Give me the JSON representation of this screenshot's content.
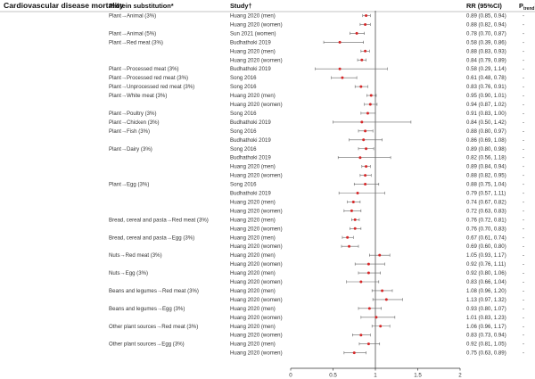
{
  "header": {
    "outcome": "Cardiovascular disease mortality",
    "substitution": "Protein substitution*",
    "study": "Study†",
    "rr": "RR (95%CI)",
    "p": "P",
    "p_sub": "trend",
    "p_sup": "‡"
  },
  "chart_data": {
    "type": "forest",
    "x_ticks": [
      0,
      0.5,
      1,
      1.5,
      2
    ],
    "x_tick_labels": [
      "0",
      "0.5",
      "1",
      "1.5",
      "2"
    ],
    "xlim": [
      0,
      2
    ],
    "reference_line": 1,
    "marker_color": "#d62728",
    "rows": [
      {
        "substitution": "Plant→Animal (3%)",
        "study": "Huang 2020 (men)",
        "rr": 0.89,
        "lo": 0.85,
        "hi": 0.94,
        "text": "0.89 (0.85, 0.94)",
        "p": "-"
      },
      {
        "substitution": "",
        "study": "Huang 2020 (women)",
        "rr": 0.88,
        "lo": 0.82,
        "hi": 0.94,
        "text": "0.88 (0.82, 0.94)",
        "p": "-"
      },
      {
        "substitution": "Plant→Animal (5%)",
        "study": "Sun 2021 (women)",
        "rr": 0.78,
        "lo": 0.7,
        "hi": 0.87,
        "text": "0.78 (0.70, 0.87)",
        "p": "-"
      },
      {
        "substitution": "Plant→Red meat (3%)",
        "study": "Budhathoki 2019",
        "rr": 0.58,
        "lo": 0.39,
        "hi": 0.86,
        "text": "0.58 (0.39, 0.86)",
        "p": "-"
      },
      {
        "substitution": "",
        "study": "Huang 2020 (men)",
        "rr": 0.88,
        "lo": 0.83,
        "hi": 0.93,
        "text": "0.88 (0.83, 0.93)",
        "p": "-"
      },
      {
        "substitution": "",
        "study": "Huang 2020 (women)",
        "rr": 0.84,
        "lo": 0.79,
        "hi": 0.89,
        "text": "0.84 (0.79, 0.89)",
        "p": "-"
      },
      {
        "substitution": "Plant→Processed meat (3%)",
        "study": "Budhathoki 2019",
        "rr": 0.58,
        "lo": 0.29,
        "hi": 1.14,
        "text": "0.58 (0.29, 1.14)",
        "p": "-"
      },
      {
        "substitution": "Plant→Processed red meat (3%)",
        "study": "Song 2016",
        "rr": 0.61,
        "lo": 0.48,
        "hi": 0.78,
        "text": "0.61 (0.48, 0.78)",
        "p": "-"
      },
      {
        "substitution": "Plant→Unprocessed red meat (3%)",
        "study": "Song 2016",
        "rr": 0.83,
        "lo": 0.76,
        "hi": 0.91,
        "text": "0.83 (0.76, 0.91)",
        "p": "-"
      },
      {
        "substitution": "Plant→White meat (3%)",
        "study": "Huang 2020 (men)",
        "rr": 0.95,
        "lo": 0.9,
        "hi": 1.01,
        "text": "0.95 (0.90, 1.01)",
        "p": "-"
      },
      {
        "substitution": "",
        "study": "Huang 2020 (women)",
        "rr": 0.94,
        "lo": 0.87,
        "hi": 1.02,
        "text": "0.94 (0.87, 1.02)",
        "p": "-"
      },
      {
        "substitution": "Plant→Poultry (3%)",
        "study": "Song 2016",
        "rr": 0.91,
        "lo": 0.83,
        "hi": 1.0,
        "text": "0.91 (0.83, 1.00)",
        "p": "-"
      },
      {
        "substitution": "Plant→Chicken (3%)",
        "study": "Budhathoki 2019",
        "rr": 0.84,
        "lo": 0.5,
        "hi": 1.42,
        "text": "0.84 (0.50, 1.42)",
        "p": "-"
      },
      {
        "substitution": "Plant→Fish (3%)",
        "study": "Song 2016",
        "rr": 0.88,
        "lo": 0.8,
        "hi": 0.97,
        "text": "0.88 (0.80, 0.97)",
        "p": "-"
      },
      {
        "substitution": "",
        "study": "Budhathoki 2019",
        "rr": 0.86,
        "lo": 0.69,
        "hi": 1.08,
        "text": "0.86 (0.69, 1.08)",
        "p": "-"
      },
      {
        "substitution": "Plant→Dairy (3%)",
        "study": "Song 2016",
        "rr": 0.89,
        "lo": 0.8,
        "hi": 0.98,
        "text": "0.89 (0.80, 0.98)",
        "p": "-"
      },
      {
        "substitution": "",
        "study": "Budhathoki 2019",
        "rr": 0.82,
        "lo": 0.56,
        "hi": 1.18,
        "text": "0.82 (0.56, 1.18)",
        "p": "-"
      },
      {
        "substitution": "",
        "study": "Huang 2020 (men)",
        "rr": 0.89,
        "lo": 0.84,
        "hi": 0.94,
        "text": "0.89 (0.84, 0.94)",
        "p": "-"
      },
      {
        "substitution": "",
        "study": "Huang 2020 (women)",
        "rr": 0.88,
        "lo": 0.82,
        "hi": 0.95,
        "text": "0.88 (0.82, 0.95)",
        "p": "-"
      },
      {
        "substitution": "Plant→Egg (3%)",
        "study": "Song 2016",
        "rr": 0.88,
        "lo": 0.75,
        "hi": 1.04,
        "text": "0.88 (0.75, 1.04)",
        "p": "-"
      },
      {
        "substitution": "",
        "study": "Budhathoki 2019",
        "rr": 0.79,
        "lo": 0.57,
        "hi": 1.11,
        "text": "0.79 (0.57, 1.11)",
        "p": "-"
      },
      {
        "substitution": "",
        "study": "Huang 2020 (men)",
        "rr": 0.74,
        "lo": 0.67,
        "hi": 0.82,
        "text": "0.74 (0.67, 0.82)",
        "p": "-"
      },
      {
        "substitution": "",
        "study": "Huang 2020 (women)",
        "rr": 0.72,
        "lo": 0.63,
        "hi": 0.83,
        "text": "0.72 (0.63, 0.83)",
        "p": "-"
      },
      {
        "substitution": "Bread, cereal and pasta→Red meat (3%)",
        "study": "Huang 2020 (men)",
        "rr": 0.76,
        "lo": 0.72,
        "hi": 0.81,
        "text": "0.76 (0.72, 0.81)",
        "p": "-"
      },
      {
        "substitution": "",
        "study": "Huang 2020 (women)",
        "rr": 0.76,
        "lo": 0.7,
        "hi": 0.83,
        "text": "0.76 (0.70, 0.83)",
        "p": "-"
      },
      {
        "substitution": "Bread, cereal and pasta→Egg (3%)",
        "study": "Huang 2020 (men)",
        "rr": 0.67,
        "lo": 0.61,
        "hi": 0.74,
        "text": "0.67 (0.61, 0.74)",
        "p": "-"
      },
      {
        "substitution": "",
        "study": "Huang 2020 (women)",
        "rr": 0.69,
        "lo": 0.6,
        "hi": 0.8,
        "text": "0.69 (0.60, 0.80)",
        "p": "-"
      },
      {
        "substitution": "Nuts→Red meat (3%)",
        "study": "Huang 2020 (men)",
        "rr": 1.05,
        "lo": 0.93,
        "hi": 1.17,
        "text": "1.05 (0.93, 1.17)",
        "p": "-"
      },
      {
        "substitution": "",
        "study": "Huang 2020 (women)",
        "rr": 0.92,
        "lo": 0.76,
        "hi": 1.11,
        "text": "0.92 (0.76, 1.11)",
        "p": "-"
      },
      {
        "substitution": "Nuts→Egg (3%)",
        "study": "Huang 2020 (men)",
        "rr": 0.92,
        "lo": 0.8,
        "hi": 1.06,
        "text": "0.92 (0.80, 1.06)",
        "p": "-"
      },
      {
        "substitution": "",
        "study": "Huang 2020 (women)",
        "rr": 0.83,
        "lo": 0.66,
        "hi": 1.04,
        "text": "0.83 (0.66, 1.04)",
        "p": "-"
      },
      {
        "substitution": "Beans and legumes→Red meat (3%)",
        "study": "Huang 2020 (men)",
        "rr": 1.08,
        "lo": 0.96,
        "hi": 1.2,
        "text": "1.08 (0.96, 1.20)",
        "p": "-"
      },
      {
        "substitution": "",
        "study": "Huang 2020 (women)",
        "rr": 1.13,
        "lo": 0.97,
        "hi": 1.32,
        "text": "1.13 (0.97, 1.32)",
        "p": "-"
      },
      {
        "substitution": "Beans and legumes→Egg (3%)",
        "study": "Huang 2020 (men)",
        "rr": 0.93,
        "lo": 0.8,
        "hi": 1.07,
        "text": "0.93 (0.80, 1.07)",
        "p": "-"
      },
      {
        "substitution": "",
        "study": "Huang 2020 (women)",
        "rr": 1.01,
        "lo": 0.83,
        "hi": 1.23,
        "text": "1.01 (0.83, 1.23)",
        "p": "-"
      },
      {
        "substitution": "Other plant sources→Red meat (3%)",
        "study": "Huang 2020 (men)",
        "rr": 1.06,
        "lo": 0.96,
        "hi": 1.17,
        "text": "1.06 (0.96, 1.17)",
        "p": "-"
      },
      {
        "substitution": "",
        "study": "Huang 2020 (women)",
        "rr": 0.83,
        "lo": 0.73,
        "hi": 0.94,
        "text": "0.83 (0.73, 0.94)",
        "p": "-"
      },
      {
        "substitution": "Other plant sources→Egg (3%)",
        "study": "Huang 2020 (men)",
        "rr": 0.92,
        "lo": 0.81,
        "hi": 1.05,
        "text": "0.92 (0.81, 1.05)",
        "p": "-"
      },
      {
        "substitution": "",
        "study": "Huang 2020 (women)",
        "rr": 0.75,
        "lo": 0.63,
        "hi": 0.89,
        "text": "0.75 (0.63, 0.89)",
        "p": "-"
      }
    ]
  }
}
